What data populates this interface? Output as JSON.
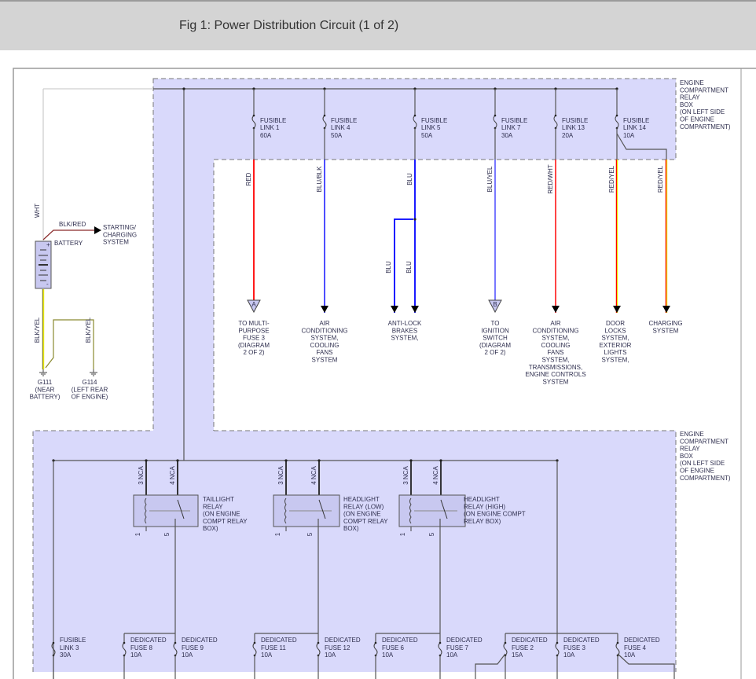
{
  "header": {
    "title": "Fig 1: Power Distribution Circuit (1 of 2)"
  },
  "colors": {
    "shade": "#d9d9fb",
    "red": "#ff0000",
    "blue": "#0000ff",
    "blue_black": "#3a3aff",
    "blue_yellow": "#6a6aff",
    "yellow": "#e8e800",
    "white_wire": "#cfcfcf",
    "wire": "#555555"
  },
  "relay_box_label": [
    "ENGINE",
    "COMPARTMENT",
    "RELAY",
    "BOX",
    "(ON LEFT SIDE",
    "OF ENGINE",
    "COMPARTMENT)"
  ],
  "battery": {
    "label": "BATTERY",
    "plus": "+",
    "minus": "-",
    "wht_wire": "WHT",
    "out_wire": "BLK/RED",
    "out_dest": [
      "STARTING/",
      "CHARGING",
      "SYSTEM"
    ],
    "ground_wire_1": "BLK/YEL",
    "ground_wire_2": "BLK/YEL",
    "grounds": [
      {
        "lines": [
          "G111",
          "(NEAR",
          "BATTERY)"
        ]
      },
      {
        "lines": [
          "G114",
          "(LEFT REAR",
          "OF ENGINE)"
        ]
      }
    ]
  },
  "top_fuses": [
    {
      "name": "FUSIBLE",
      "id": "LINK 1",
      "rating": "60A",
      "wire": "RED",
      "terminal": "A",
      "dest": [
        "TO MULTI-",
        "PURPOSE",
        "FUSE 3",
        "(DIAGRAM",
        "2 OF 2)"
      ]
    },
    {
      "name": "FUSIBLE",
      "id": "LINK 4",
      "rating": "50A",
      "wire": "BLU/BLK",
      "dest": [
        "AIR",
        "CONDITIONING",
        "SYSTEM,",
        "COOLING",
        "FANS",
        "SYSTEM"
      ]
    },
    {
      "name": "FUSIBLE",
      "id": "LINK 5",
      "rating": "50A",
      "wire": "BLU",
      "branch_wires": [
        "BLU",
        "BLU"
      ],
      "dest": [
        "ANTI-LOCK",
        "BRAKES",
        "SYSTEM,"
      ]
    },
    {
      "name": "FUSIBLE",
      "id": "LINK 7",
      "rating": "30A",
      "wire": "BLU/YEL",
      "terminal": "B",
      "dest": [
        "TO",
        "IGNITION",
        "SWITCH",
        "(DIAGRAM",
        "2 OF 2)"
      ]
    },
    {
      "name": "FUSIBLE",
      "id": "LINK 13",
      "rating": "20A",
      "wire": "RED/WHT",
      "dest": [
        "AIR",
        "CONDITIONING",
        "SYSTEM,",
        "COOLING",
        "FANS",
        "SYSTEM,",
        "TRANSMISSIONS,",
        "ENGINE CONTROLS",
        "SYSTEM"
      ]
    },
    {
      "name": "FUSIBLE",
      "id": "LINK 14",
      "rating": "10A",
      "wire": "RED/YEL",
      "dest": [
        "DOOR",
        "LOCKS",
        "SYSTEM,",
        "EXTERIOR",
        "LIGHTS",
        "SYSTEM,"
      ],
      "branch_wire": "RED/YEL",
      "branch_dest": [
        "CHARGING",
        "SYSTEM"
      ]
    }
  ],
  "relays": [
    {
      "label": [
        "TAILLIGHT",
        "RELAY",
        "(ON ENGINE",
        "COMPT RELAY",
        "BOX)"
      ],
      "pins": [
        "3 NCA",
        "4 NCA",
        "1",
        "5"
      ]
    },
    {
      "label": [
        "HEADLIGHT",
        "RELAY (LOW)",
        "(ON ENGINE",
        "COMPT RELAY",
        "BOX)"
      ],
      "pins": [
        "3 NCA",
        "4 NCA",
        "1",
        "5"
      ]
    },
    {
      "label": [
        "HEADLIGHT",
        "RELAY (HIGH)",
        "(ON ENGINE COMPT",
        "RELAY BOX)"
      ],
      "pins": [
        "3 NCA",
        "4 NCA",
        "1",
        "5"
      ]
    }
  ],
  "bottom_fuses": [
    {
      "name": "FUSIBLE",
      "id": "LINK 3",
      "rating": "30A"
    },
    {
      "name": "DEDICATED",
      "id": "FUSE 8",
      "rating": "10A"
    },
    {
      "name": "DEDICATED",
      "id": "FUSE 9",
      "rating": "10A"
    },
    {
      "name": "DEDICATED",
      "id": "FUSE 11",
      "rating": "10A"
    },
    {
      "name": "DEDICATED",
      "id": "FUSE 12",
      "rating": "10A"
    },
    {
      "name": "DEDICATED",
      "id": "FUSE 6",
      "rating": "10A"
    },
    {
      "name": "DEDICATED",
      "id": "FUSE 7",
      "rating": "10A"
    },
    {
      "name": "DEDICATED",
      "id": "FUSE 2",
      "rating": "15A"
    },
    {
      "name": "DEDICATED",
      "id": "FUSE 3",
      "rating": "10A"
    },
    {
      "name": "DEDICATED",
      "id": "FUSE 4",
      "rating": "10A"
    }
  ]
}
